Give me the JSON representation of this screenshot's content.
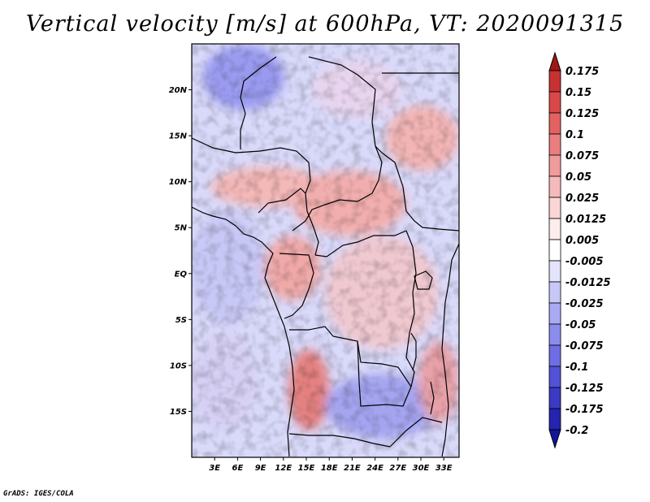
{
  "title": "Vertical velocity [m/s] at 600hPa, VT: 2020091315",
  "credit": "GrADS: IGES/COLA",
  "map": {
    "lon_range": [
      0,
      35
    ],
    "lat_range": [
      -20,
      25
    ],
    "lat_ticks": [
      {
        "value": 20,
        "label": "20N"
      },
      {
        "value": 15,
        "label": "15N"
      },
      {
        "value": 10,
        "label": "10N"
      },
      {
        "value": 5,
        "label": "5N"
      },
      {
        "value": 0,
        "label": "EQ"
      },
      {
        "value": -5,
        "label": "5S"
      },
      {
        "value": -10,
        "label": "10S"
      },
      {
        "value": -15,
        "label": "15S"
      }
    ],
    "lon_ticks": [
      {
        "value": 3,
        "label": "3E"
      },
      {
        "value": 6,
        "label": "6E"
      },
      {
        "value": 9,
        "label": "9E"
      },
      {
        "value": 12,
        "label": "12E"
      },
      {
        "value": 15,
        "label": "15E"
      },
      {
        "value": 18,
        "label": "18E"
      },
      {
        "value": 21,
        "label": "21E"
      },
      {
        "value": 24,
        "label": "24E"
      },
      {
        "value": 27,
        "label": "27E"
      },
      {
        "value": 30,
        "label": "30E"
      },
      {
        "value": 33,
        "label": "33E"
      }
    ]
  },
  "colorbar": {
    "levels": [
      {
        "label": "0.175",
        "color": "#b31d1d"
      },
      {
        "label": "0.15",
        "color": "#c63232"
      },
      {
        "label": "0.125",
        "color": "#d84848"
      },
      {
        "label": "0.1",
        "color": "#e26262"
      },
      {
        "label": "0.075",
        "color": "#ea7e7e"
      },
      {
        "label": "0.05",
        "color": "#f09c9c"
      },
      {
        "label": "0.025",
        "color": "#f6baba"
      },
      {
        "label": "0.0125",
        "color": "#fad6d6"
      },
      {
        "label": "0.005",
        "color": "#fdeded"
      },
      {
        "label": "-0.005",
        "color": "#ffffff"
      },
      {
        "label": "-0.0125",
        "color": "#e4e4fc"
      },
      {
        "label": "-0.025",
        "color": "#c8c8f8"
      },
      {
        "label": "-0.05",
        "color": "#aaaaf3"
      },
      {
        "label": "-0.075",
        "color": "#8c8cee"
      },
      {
        "label": "-0.1",
        "color": "#6e6ee4"
      },
      {
        "label": "-0.125",
        "color": "#5252d6"
      },
      {
        "label": "-0.175",
        "color": "#3a3ac4"
      },
      {
        "label": "-0.2",
        "color": "#2424ae"
      }
    ],
    "top_color": "#a11818",
    "bottom_color": "#14149a"
  }
}
